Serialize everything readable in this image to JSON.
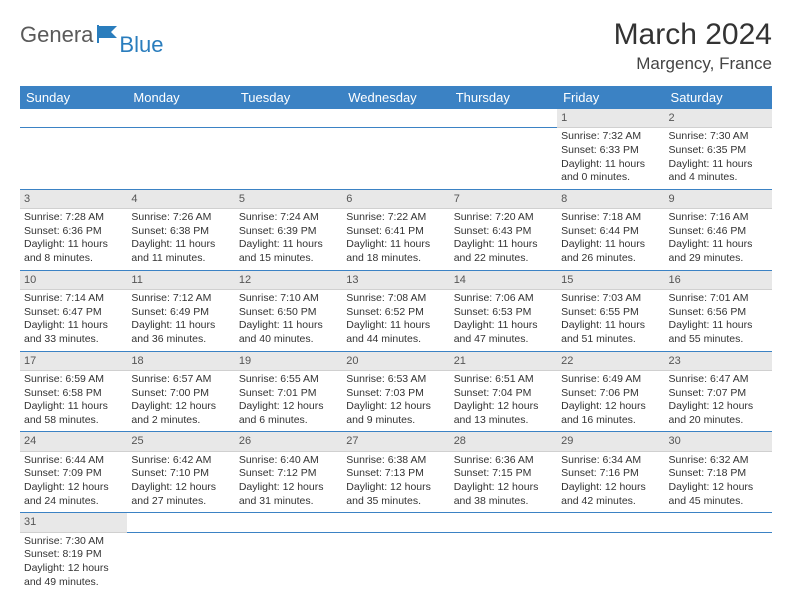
{
  "logo": {
    "part1": "Genera",
    "part2": "Blue"
  },
  "title": "March 2024",
  "location": "Margency, France",
  "colors": {
    "header_bg": "#3b82c4",
    "header_text": "#ffffff",
    "daynum_bg": "#e8e8e8",
    "border": "#3b82c4",
    "logo_gray": "#5a5a5a",
    "logo_blue": "#2a7dbd"
  },
  "dayHeaders": [
    "Sunday",
    "Monday",
    "Tuesday",
    "Wednesday",
    "Thursday",
    "Friday",
    "Saturday"
  ],
  "weeks": [
    [
      null,
      null,
      null,
      null,
      null,
      {
        "n": "1",
        "sr": "7:32 AM",
        "ss": "6:33 PM",
        "dl": "11 hours and 0 minutes."
      },
      {
        "n": "2",
        "sr": "7:30 AM",
        "ss": "6:35 PM",
        "dl": "11 hours and 4 minutes."
      }
    ],
    [
      {
        "n": "3",
        "sr": "7:28 AM",
        "ss": "6:36 PM",
        "dl": "11 hours and 8 minutes."
      },
      {
        "n": "4",
        "sr": "7:26 AM",
        "ss": "6:38 PM",
        "dl": "11 hours and 11 minutes."
      },
      {
        "n": "5",
        "sr": "7:24 AM",
        "ss": "6:39 PM",
        "dl": "11 hours and 15 minutes."
      },
      {
        "n": "6",
        "sr": "7:22 AM",
        "ss": "6:41 PM",
        "dl": "11 hours and 18 minutes."
      },
      {
        "n": "7",
        "sr": "7:20 AM",
        "ss": "6:43 PM",
        "dl": "11 hours and 22 minutes."
      },
      {
        "n": "8",
        "sr": "7:18 AM",
        "ss": "6:44 PM",
        "dl": "11 hours and 26 minutes."
      },
      {
        "n": "9",
        "sr": "7:16 AM",
        "ss": "6:46 PM",
        "dl": "11 hours and 29 minutes."
      }
    ],
    [
      {
        "n": "10",
        "sr": "7:14 AM",
        "ss": "6:47 PM",
        "dl": "11 hours and 33 minutes."
      },
      {
        "n": "11",
        "sr": "7:12 AM",
        "ss": "6:49 PM",
        "dl": "11 hours and 36 minutes."
      },
      {
        "n": "12",
        "sr": "7:10 AM",
        "ss": "6:50 PM",
        "dl": "11 hours and 40 minutes."
      },
      {
        "n": "13",
        "sr": "7:08 AM",
        "ss": "6:52 PM",
        "dl": "11 hours and 44 minutes."
      },
      {
        "n": "14",
        "sr": "7:06 AM",
        "ss": "6:53 PM",
        "dl": "11 hours and 47 minutes."
      },
      {
        "n": "15",
        "sr": "7:03 AM",
        "ss": "6:55 PM",
        "dl": "11 hours and 51 minutes."
      },
      {
        "n": "16",
        "sr": "7:01 AM",
        "ss": "6:56 PM",
        "dl": "11 hours and 55 minutes."
      }
    ],
    [
      {
        "n": "17",
        "sr": "6:59 AM",
        "ss": "6:58 PM",
        "dl": "11 hours and 58 minutes."
      },
      {
        "n": "18",
        "sr": "6:57 AM",
        "ss": "7:00 PM",
        "dl": "12 hours and 2 minutes."
      },
      {
        "n": "19",
        "sr": "6:55 AM",
        "ss": "7:01 PM",
        "dl": "12 hours and 6 minutes."
      },
      {
        "n": "20",
        "sr": "6:53 AM",
        "ss": "7:03 PM",
        "dl": "12 hours and 9 minutes."
      },
      {
        "n": "21",
        "sr": "6:51 AM",
        "ss": "7:04 PM",
        "dl": "12 hours and 13 minutes."
      },
      {
        "n": "22",
        "sr": "6:49 AM",
        "ss": "7:06 PM",
        "dl": "12 hours and 16 minutes."
      },
      {
        "n": "23",
        "sr": "6:47 AM",
        "ss": "7:07 PM",
        "dl": "12 hours and 20 minutes."
      }
    ],
    [
      {
        "n": "24",
        "sr": "6:44 AM",
        "ss": "7:09 PM",
        "dl": "12 hours and 24 minutes."
      },
      {
        "n": "25",
        "sr": "6:42 AM",
        "ss": "7:10 PM",
        "dl": "12 hours and 27 minutes."
      },
      {
        "n": "26",
        "sr": "6:40 AM",
        "ss": "7:12 PM",
        "dl": "12 hours and 31 minutes."
      },
      {
        "n": "27",
        "sr": "6:38 AM",
        "ss": "7:13 PM",
        "dl": "12 hours and 35 minutes."
      },
      {
        "n": "28",
        "sr": "6:36 AM",
        "ss": "7:15 PM",
        "dl": "12 hours and 38 minutes."
      },
      {
        "n": "29",
        "sr": "6:34 AM",
        "ss": "7:16 PM",
        "dl": "12 hours and 42 minutes."
      },
      {
        "n": "30",
        "sr": "6:32 AM",
        "ss": "7:18 PM",
        "dl": "12 hours and 45 minutes."
      }
    ],
    [
      {
        "n": "31",
        "sr": "7:30 AM",
        "ss": "8:19 PM",
        "dl": "12 hours and 49 minutes."
      },
      null,
      null,
      null,
      null,
      null,
      null
    ]
  ],
  "labels": {
    "sunrise": "Sunrise:",
    "sunset": "Sunset:",
    "daylight": "Daylight:"
  }
}
